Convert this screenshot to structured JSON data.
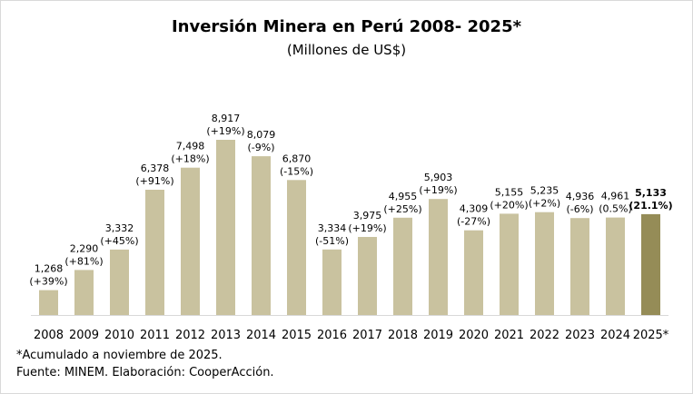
{
  "title": "Inversión Minera en Perú 2008- 2025*",
  "subtitle": "(Millones de US$)",
  "footnotes": [
    "*Acumulado a noviembre de 2025.",
    "Fuente: MINEM. Elaboración: CooperAcción."
  ],
  "colors": {
    "bar": "#c9c29f",
    "highlight_bar": "#958c57",
    "axis": "#d9d9d9"
  },
  "chart_data": {
    "type": "bar",
    "title": "Inversión Minera en Perú 2008- 2025*",
    "subtitle": "(Millones de US$)",
    "categories": [
      "2008",
      "2009",
      "2010",
      "2011",
      "2012",
      "2013",
      "2014",
      "2015",
      "2016",
      "2017",
      "2018",
      "2019",
      "2020",
      "2021",
      "2022",
      "2023",
      "2024",
      "2025*"
    ],
    "values": [
      1268,
      2290,
      3332,
      6378,
      7498,
      8917,
      8079,
      6870,
      3334,
      3975,
      4955,
      5903,
      4309,
      5155,
      5235,
      4936,
      4961,
      5133
    ],
    "value_labels": [
      "1,268",
      "2,290",
      "3,332",
      "6,378",
      "7,498",
      "8,917",
      "8,079",
      "6,870",
      "3,334",
      "3,975",
      "4,955",
      "5,903",
      "4,309",
      "5,155",
      "5,235",
      "4,936",
      "4,961",
      "5,133"
    ],
    "change_labels": [
      "(+39%)",
      "(+81%)",
      "(+45%)",
      "(+91%)",
      "(+18%)",
      "(+19%)",
      "(-9%)",
      "(-15%)",
      "(-51%)",
      "(+19%)",
      "(+25%)",
      "(+19%)",
      "(-27%)",
      "(+20%)",
      "(+2%)",
      "(-6%)",
      "(0.5%)",
      "(21.1%)"
    ],
    "highlight_index": 17,
    "ylim": [
      0,
      9500
    ],
    "grid": false,
    "legend": "none"
  }
}
